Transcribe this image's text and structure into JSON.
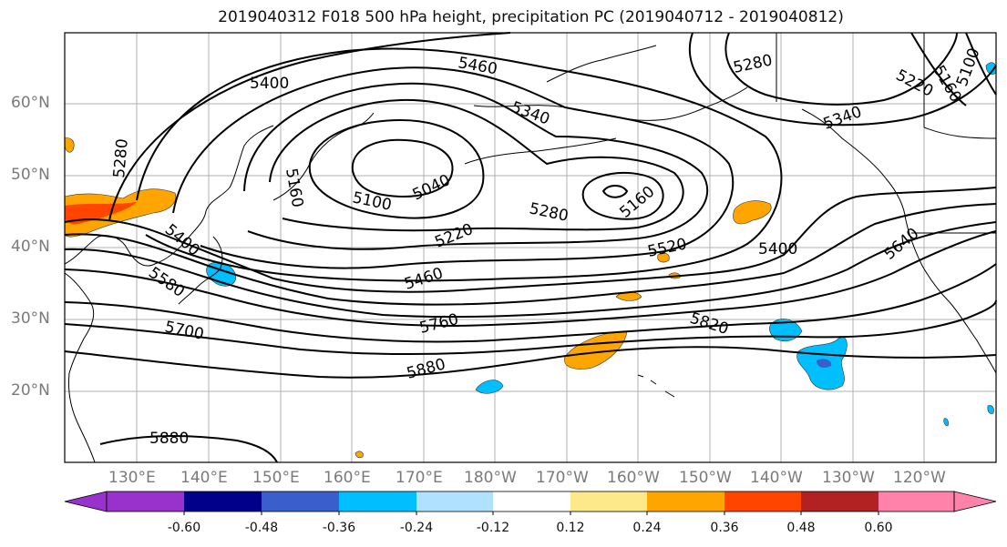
{
  "title": "2019040312 F018 500 hPa height, precipitation PC (2019040712 - 2019040812)",
  "lat_labels": [
    "60°N",
    "50°N",
    "40°N",
    "30°N",
    "20°N"
  ],
  "lon_labels": [
    "130°E",
    "140°E",
    "150°E",
    "160°E",
    "170°E",
    "180°W",
    "170°W",
    "160°W",
    "150°W",
    "140°W",
    "130°W",
    "120°W"
  ],
  "contour_labels": [
    "5400",
    "5460",
    "5280",
    "5220",
    "5160",
    "5100",
    "5340",
    "5280",
    "5160",
    "5100",
    "5040",
    "5280",
    "5220",
    "5520",
    "5400",
    "5640",
    "5400",
    "5580",
    "5460",
    "5760",
    "5820",
    "5700",
    "5880",
    "5880",
    "5160",
    "5340",
    "5400"
  ],
  "colorbar": {
    "colors": [
      "#9932cc",
      "#00008b",
      "#3a5fcd",
      "#00bfff",
      "#b0e2ff",
      "#ffffff",
      "#fde98a",
      "#ffa500",
      "#ff4500",
      "#b22222",
      "#ff82ab"
    ],
    "labels": [
      "-0.60",
      "-0.48",
      "-0.36",
      "-0.24",
      "-0.12",
      "0.12",
      "0.24",
      "0.36",
      "0.48",
      "0.60"
    ]
  }
}
